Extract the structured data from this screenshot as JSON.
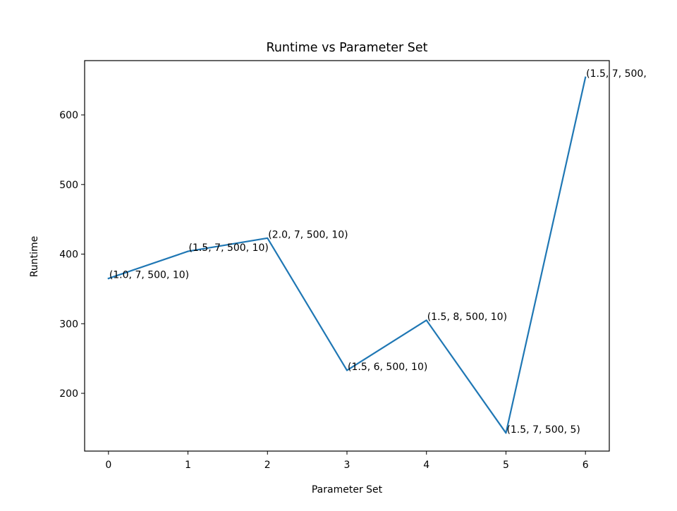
{
  "chart_data": {
    "type": "line",
    "title": "Runtime vs Parameter Set",
    "xlabel": "Parameter Set",
    "ylabel": "Runtime",
    "xlim": [
      -0.3,
      6.3
    ],
    "ylim": [
      117,
      678
    ],
    "xticks": [
      0,
      1,
      2,
      3,
      4,
      5,
      6
    ],
    "xtick_labels": [
      "0",
      "1",
      "2",
      "3",
      "4",
      "5",
      "6"
    ],
    "yticks": [
      200,
      300,
      400,
      500,
      600
    ],
    "ytick_labels": [
      "200",
      "300",
      "400",
      "500",
      "600"
    ],
    "grid": false,
    "legend": "none",
    "series": [
      {
        "color": "#1f77b4",
        "x": [
          0,
          1,
          2,
          3,
          4,
          5,
          6
        ],
        "y": [
          365,
          404,
          423,
          233,
          305,
          143,
          654
        ]
      }
    ],
    "annotations": [
      "(1.0, 7, 500, 10)",
      "(1.5, 7, 500, 10)",
      "(2.0, 7, 500, 10)",
      "(1.5, 6, 500, 10)",
      "(1.5, 8, 500, 10)",
      "(1.5, 7, 500, 5)",
      "(1.5, 7, 500,"
    ]
  }
}
